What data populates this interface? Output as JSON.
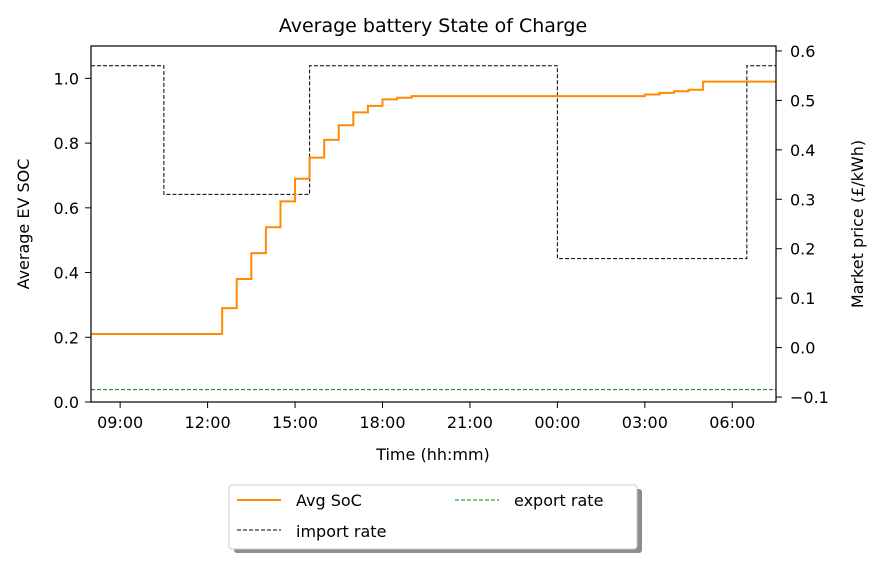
{
  "chart_data": {
    "type": "line",
    "title": "Average battery State of Charge",
    "xlabel": "Time (hh:mm)",
    "ylabel": "Average EV SOC",
    "y2label": "Market price (£/kWh)",
    "xlim": [
      8.0,
      31.5
    ],
    "ylim": [
      0.0,
      1.1
    ],
    "y2lim": [
      -0.11,
      0.61
    ],
    "x_ticks": [
      {
        "value": 9,
        "label": "09:00"
      },
      {
        "value": 12,
        "label": "12:00"
      },
      {
        "value": 15,
        "label": "15:00"
      },
      {
        "value": 18,
        "label": "18:00"
      },
      {
        "value": 21,
        "label": "21:00"
      },
      {
        "value": 24,
        "label": "00:00"
      },
      {
        "value": 27,
        "label": "03:00"
      },
      {
        "value": 30,
        "label": "06:00"
      }
    ],
    "y_ticks": [
      {
        "value": 0.0,
        "label": "0.0"
      },
      {
        "value": 0.2,
        "label": "0.2"
      },
      {
        "value": 0.4,
        "label": "0.4"
      },
      {
        "value": 0.6,
        "label": "0.6"
      },
      {
        "value": 0.8,
        "label": "0.8"
      },
      {
        "value": 1.0,
        "label": "1.0"
      }
    ],
    "y2_ticks": [
      {
        "value": -0.1,
        "label": "−0.1"
      },
      {
        "value": 0.0,
        "label": "0.0"
      },
      {
        "value": 0.1,
        "label": "0.1"
      },
      {
        "value": 0.2,
        "label": "0.2"
      },
      {
        "value": 0.3,
        "label": "0.3"
      },
      {
        "value": 0.4,
        "label": "0.4"
      },
      {
        "value": 0.5,
        "label": "0.5"
      },
      {
        "value": 0.6,
        "label": "0.6"
      }
    ],
    "grid": false,
    "legend": {
      "placement": "below",
      "ncol": 2,
      "shadow": true
    },
    "series": [
      {
        "name": "Avg SoC",
        "axis": "left",
        "style": "step",
        "color": "#ff8c00",
        "x": [
          8.0,
          12.5,
          13.0,
          13.5,
          14.0,
          14.5,
          15.0,
          15.5,
          16.0,
          16.5,
          17.0,
          17.5,
          18.0,
          18.5,
          19.0,
          24.0,
          26.5,
          27.0,
          27.5,
          28.0,
          28.5,
          29.0,
          29.5,
          30.0,
          30.5,
          31.0,
          31.5
        ],
        "y": [
          0.21,
          0.29,
          0.38,
          0.46,
          0.54,
          0.62,
          0.69,
          0.755,
          0.81,
          0.855,
          0.895,
          0.915,
          0.935,
          0.94,
          0.945,
          0.945,
          0.945,
          0.95,
          0.955,
          0.96,
          0.965,
          0.99,
          0.99,
          0.99,
          0.99,
          0.99,
          0.99
        ]
      },
      {
        "name": "import rate",
        "axis": "right",
        "style": "step-dashed",
        "color": "#000000",
        "x": [
          8.0,
          10.5,
          15.5,
          24.0,
          30.5,
          31.5
        ],
        "y": [
          0.57,
          0.31,
          0.57,
          0.18,
          0.57,
          0.57
        ]
      },
      {
        "name": "export rate",
        "axis": "right",
        "style": "dashed",
        "color": "#008000",
        "x": [
          8.0,
          31.5
        ],
        "y": [
          -0.085,
          -0.085
        ]
      }
    ]
  }
}
